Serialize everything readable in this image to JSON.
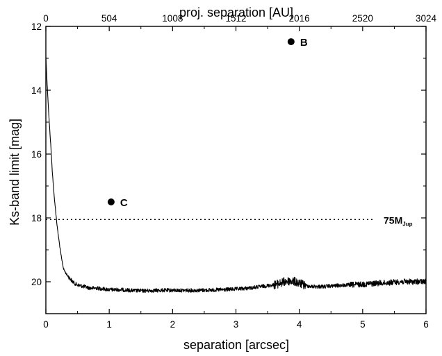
{
  "chart_data": {
    "type": "line",
    "xlabel": "separation [arcsec]",
    "ylabel": "Ks-band limit [mag]",
    "x2label": "proj. separation [AU]",
    "xlim": [
      0,
      6
    ],
    "ylim": [
      12,
      21
    ],
    "y_inverted": true,
    "x2lim": [
      0,
      3024
    ],
    "x_ticks": [
      "0",
      "1",
      "2",
      "3",
      "4",
      "5",
      "6"
    ],
    "y_ticks": [
      "12",
      "14",
      "16",
      "18",
      "20"
    ],
    "x2_ticks": [
      "0",
      "504",
      "1008",
      "1512",
      "2016",
      "2520",
      "3024"
    ],
    "grid": false,
    "series": [
      {
        "style": "noisy-line",
        "color": "#000000",
        "x": [
          0.0,
          0.02,
          0.05,
          0.08,
          0.1,
          0.13,
          0.16,
          0.18,
          0.2,
          0.22,
          0.25,
          0.28,
          0.32,
          0.36,
          0.4,
          0.45,
          0.5,
          0.6,
          0.7,
          0.8,
          0.9,
          1.0,
          1.2,
          1.4,
          1.6,
          1.8,
          2.0,
          2.2,
          2.4,
          2.6,
          2.8,
          3.0,
          3.2,
          3.4,
          3.6,
          3.7,
          3.8,
          3.9,
          4.0,
          4.1,
          4.2,
          4.4,
          4.6,
          4.8,
          5.0,
          5.2,
          5.4,
          5.6,
          5.8,
          6.0
        ],
        "y": [
          12.95,
          13.8,
          14.9,
          15.8,
          16.5,
          17.3,
          17.9,
          18.3,
          18.6,
          18.9,
          19.3,
          19.6,
          19.75,
          19.85,
          19.95,
          20.05,
          20.1,
          20.15,
          20.2,
          20.2,
          20.22,
          20.25,
          20.25,
          20.28,
          20.28,
          20.27,
          20.27,
          20.27,
          20.27,
          20.26,
          20.25,
          20.23,
          20.2,
          20.15,
          20.1,
          20.05,
          19.98,
          19.98,
          20.05,
          20.12,
          20.15,
          20.15,
          20.12,
          20.1,
          20.08,
          20.05,
          20.03,
          20.0,
          20.0,
          20.0
        ]
      }
    ],
    "points": [
      {
        "label": "B",
        "x": 3.87,
        "y": 12.48
      },
      {
        "label": "C",
        "x": 1.03,
        "y": 17.5
      }
    ],
    "reference_line": {
      "y": 18.05,
      "style": "dotted",
      "label_main": "75M",
      "label_sub": "Jup"
    }
  }
}
